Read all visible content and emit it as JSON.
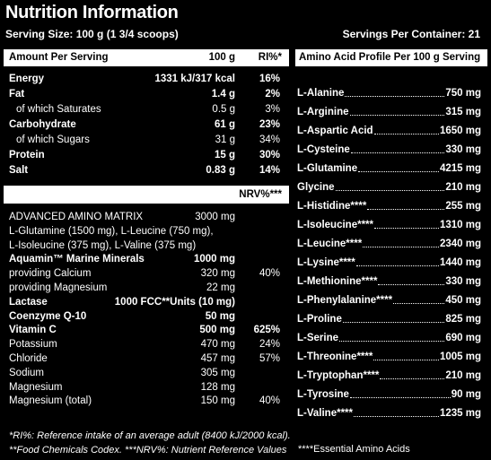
{
  "header": {
    "title": "Nutrition Information",
    "serving_size": "Serving Size: 100 g (1 3/4 scoops)",
    "servings_per_container": "Servings Per Container: 21"
  },
  "nutrition": {
    "header": [
      "Amount Per Serving",
      "100 g",
      "RI%*"
    ],
    "rows": [
      {
        "name": "Energy",
        "amount": "1331 kJ/317 kcal",
        "percent": "16%",
        "bold": true
      },
      {
        "name": "Fat",
        "amount": "1.4 g",
        "percent": "2%",
        "bold": true
      },
      {
        "name": "of which Saturates",
        "amount": "0.5 g",
        "percent": "3%",
        "indent": true
      },
      {
        "name": "Carbohydrate",
        "amount": "61 g",
        "percent": "23%",
        "bold": true
      },
      {
        "name": "of which Sugars",
        "amount": "31 g",
        "percent": "34%",
        "indent": true
      },
      {
        "name": "Protein",
        "amount": "15 g",
        "percent": "30%",
        "bold": true
      },
      {
        "name": "Salt",
        "amount": "0.83 g",
        "percent": "14%",
        "bold": true
      }
    ]
  },
  "supplement": {
    "header": "NRV%***",
    "rows": [
      {
        "name": "ADVANCED  AMINO MATRIX",
        "amount": "3000 mg"
      },
      {
        "name": "L-Glutamine (1500 mg), L-Leucine (750 mg),"
      },
      {
        "name": "L-Isoleucine (375 mg), L-Valine (375 mg)"
      },
      {
        "name": "Aquamin™ Marine Minerals",
        "amount": "1000 mg",
        "bold": true
      },
      {
        "name": "providing Calcium",
        "amount": "320 mg",
        "percent": "40%"
      },
      {
        "name": "providing Magnesium",
        "amount": "22 mg"
      },
      {
        "name": "Lactase",
        "amount": "1000 FCC**Units (10 mg)",
        "bold": true
      },
      {
        "name": "Coenzyme Q-10",
        "amount": "50 mg",
        "bold": true
      },
      {
        "name": "Vitamin C",
        "amount": "500 mg",
        "percent": "625%",
        "bold": true
      },
      {
        "name": "Potassium",
        "amount": "470 mg",
        "percent": "24%"
      },
      {
        "name": "Chloride",
        "amount": "457 mg",
        "percent": "57%"
      },
      {
        "name": "Sodium",
        "amount": "305 mg"
      },
      {
        "name": "Magnesium",
        "amount": "128 mg"
      },
      {
        "name": "Magnesium (total)",
        "amount": "150 mg",
        "percent": "40%"
      }
    ]
  },
  "footnotes": [
    "*RI%: Reference intake of an average adult (8400 kJ/2000 kcal).",
    "**Food Chemicals Codex.  ***NRV%: Nutrient Reference Values"
  ],
  "amino": {
    "header": "Amino Acid Profile Per 100 g Serving",
    "rows": [
      {
        "name": "L-Alanine",
        "amount": "750 mg"
      },
      {
        "name": "L-Arginine",
        "amount": "315 mg"
      },
      {
        "name": "L-Aspartic Acid",
        "amount": "1650 mg"
      },
      {
        "name": "L-Cysteine",
        "amount": "330 mg"
      },
      {
        "name": "L-Glutamine",
        "amount": "4215 mg"
      },
      {
        "name": "Glycine",
        "amount": "210 mg"
      },
      {
        "name": "L-Histidine****",
        "amount": "255 mg"
      },
      {
        "name": "L-Isoleucine****",
        "amount": "1310 mg"
      },
      {
        "name": "L-Leucine****",
        "amount": "2340 mg"
      },
      {
        "name": "L-Lysine****",
        "amount": "1440 mg"
      },
      {
        "name": "L-Methionine****",
        "amount": "330 mg"
      },
      {
        "name": "L-Phenylalanine****",
        "amount": "450 mg"
      },
      {
        "name": "L-Proline",
        "amount": "825 mg"
      },
      {
        "name": "L-Serine",
        "amount": "690 mg"
      },
      {
        "name": "L-Threonine****",
        "amount": "1005 mg"
      },
      {
        "name": "L-Tryptophan****",
        "amount": "210 mg"
      },
      {
        "name": "L-Tyrosine",
        "amount": "90 mg"
      },
      {
        "name": "L-Valine****",
        "amount": "1235 mg"
      }
    ],
    "footnote": "****Essential Amino Acids"
  }
}
